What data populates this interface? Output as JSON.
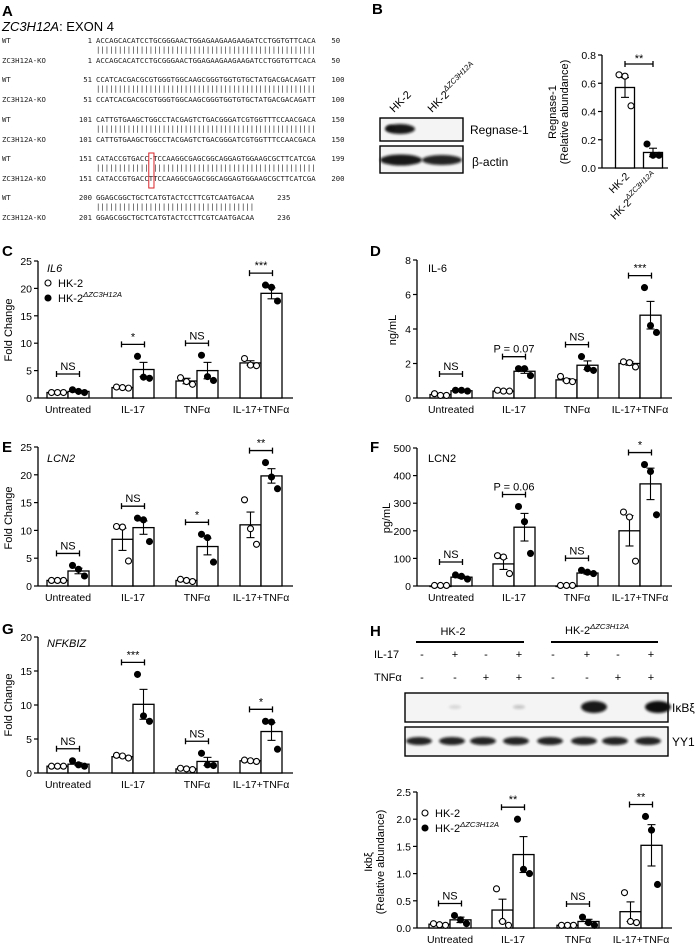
{
  "legend": {
    "hk2": "HK-2",
    "ko_main": "HK-2",
    "ko_sup": "ΔZC3H12A"
  },
  "panel_a": {
    "letter": "A",
    "title_gene": "ZC3H12A",
    "title_rest": ": EXON 4",
    "rows": [
      {
        "wt": {
          "label": "WT",
          "start": "1",
          "seq": "ACCAGCACATCCTGCGGGAACTGGAGAAGAAGAAGATCCTGGTGTTCACA",
          "end": "50"
        },
        "match": "||||||||||||||||||||||||||||||||||||||||||||||||||",
        "ko": {
          "label": "ZC3H12A-KO",
          "start": "1",
          "seq": "ACCAGCACATCCTGCGGGAACTGGAGAAGAAGAAGATCCTGGTGTTCACA",
          "end": "50"
        }
      },
      {
        "wt": {
          "label": "WT",
          "start": "51",
          "seq": "CCATCACGACGCGTGGGTGGCAAGCGGGTGGTGTGCTATGACGACAGATT",
          "end": "100"
        },
        "match": "||||||||||||||||||||||||||||||||||||||||||||||||||",
        "ko": {
          "label": "ZC3H12A-KO",
          "start": "51",
          "seq": "CCATCACGACGCGTGGGTGGCAAGCGGGTGGTGTGCTATGACGACAGATT",
          "end": "100"
        }
      },
      {
        "wt": {
          "label": "WT",
          "start": "101",
          "seq": "CATTGTGAAGCTGGCCTACGAGTCTGACGGGATCGTGGTTTCCAACGACA",
          "end": "150"
        },
        "match": "||||||||||||||||||||||||||||||||||||||||||||||||||",
        "ko": {
          "label": "ZC3H12A-KO",
          "start": "101",
          "seq": "CATTGTGAAGCTGGCCTACGAGTCTGACGGGATCGTGGTTTCCAACGACA",
          "end": "150"
        }
      },
      {
        "wt": {
          "label": "WT",
          "start": "151",
          "seq": "CATACCGTGACC-TCCAAGGCGAGCGGCAGGAGTGGAAGCGCTTCATCGA",
          "end": "199"
        },
        "match": "|||||||||||| |||||||||||||||||||||||||||||||||||||",
        "ko": {
          "label": "ZC3H12A-KO",
          "start": "151",
          "seq": "CATACCGTGACCTTCCAAGGCGAGCGGCAGGAGTGGAAGCGCTTCATCGA",
          "end": "200"
        }
      },
      {
        "wt": {
          "label": "WT",
          "start": "200",
          "seq": "GGAGCGGCTGCTCATGTACTCCTTCGTCAATGACAA",
          "end": "235"
        },
        "match": "||||||||||||||||||||||||||||||||||||",
        "ko": {
          "label": "ZC3H12A-KO",
          "start": "201",
          "seq": "GGAGCGGCTGCTCATGTACTCCTTCGTCAATGACAA",
          "end": "236"
        }
      }
    ],
    "highlight_color": "#d9262b"
  },
  "panel_b": {
    "letter": "B",
    "lane_labels": [
      "HK-2",
      "HK-2"
    ],
    "lane_sup": [
      "",
      "ΔZC3H12A"
    ],
    "bands": [
      "Regnase-1",
      "β-actin"
    ]
  },
  "panel_h_blot": {
    "letter": "H",
    "groups": [
      {
        "main": "HK-2",
        "sup": ""
      },
      {
        "main": "HK-2",
        "sup": "ΔZC3H12A"
      }
    ],
    "rows": [
      {
        "label": "IL-17",
        "signs": [
          "-",
          "+",
          "-",
          "+",
          "-",
          "+",
          "-",
          "+"
        ]
      },
      {
        "label": "TNFα",
        "signs": [
          "-",
          "-",
          "+",
          "+",
          "-",
          "-",
          "+",
          "+"
        ]
      }
    ],
    "bands": [
      "IκBξ",
      "YY1"
    ]
  },
  "chart_data": [
    {
      "id": "B",
      "letter": "",
      "type": "bar",
      "title": "",
      "title_italic": false,
      "ylabel": [
        "Regnase-1",
        "(Relative abundance)"
      ],
      "ylim": [
        0,
        0.8
      ],
      "yticks": [
        "0.0",
        "0.2",
        "0.4",
        "0.6",
        "0.8"
      ],
      "categories": [
        {
          "main": "HK-2",
          "sup": ""
        },
        {
          "main": "HK-2",
          "sup": "ΔZC3H12A"
        }
      ],
      "groups": [
        {
          "bars": [
            {
              "series": 0,
              "mean": 0.57,
              "sem": 0.07,
              "points": [
                0.66,
                0.65,
                0.44
              ]
            }
          ]
        },
        {
          "bars": [
            {
              "series": 1,
              "mean": 0.11,
              "sem": 0.03,
              "points": [
                0.17,
                0.09,
                0.09
              ]
            }
          ]
        }
      ],
      "comparisons": [
        {
          "label": "**",
          "between": [
            0,
            1
          ]
        }
      ],
      "legend": false
    },
    {
      "id": "C",
      "letter": "C",
      "type": "bar",
      "title": "IL6",
      "title_italic": true,
      "ylabel": [
        "Fold Change"
      ],
      "ylim": [
        0,
        25
      ],
      "yticks": [
        "0",
        "5",
        "10",
        "15",
        "20",
        "25"
      ],
      "categories": [
        "Untreated",
        "IL-17",
        "TNFα",
        "IL-17+TNFα"
      ],
      "series": [
        "HK-2",
        "HK-2ΔZC3H12A"
      ],
      "groups": [
        {
          "sig": "NS",
          "bars": [
            {
              "series": 0,
              "mean": 1.0,
              "sem": 0.05,
              "points": [
                1.0,
                1.0,
                1.0
              ]
            },
            {
              "series": 1,
              "mean": 1.2,
              "sem": 0.15,
              "points": [
                1.5,
                1.2,
                1.0
              ]
            }
          ]
        },
        {
          "sig": "*",
          "bars": [
            {
              "series": 0,
              "mean": 1.9,
              "sem": 0.1,
              "points": [
                2.0,
                1.9,
                1.8
              ]
            },
            {
              "series": 1,
              "mean": 5.2,
              "sem": 1.3,
              "points": [
                7.6,
                3.8,
                3.6
              ]
            }
          ]
        },
        {
          "sig": "NS",
          "bars": [
            {
              "series": 0,
              "mean": 3.1,
              "sem": 0.5,
              "points": [
                3.7,
                3.0,
                2.5
              ]
            },
            {
              "series": 1,
              "mean": 5.0,
              "sem": 1.5,
              "points": [
                7.8,
                3.9,
                3.2
              ]
            }
          ]
        },
        {
          "sig": "***",
          "bars": [
            {
              "series": 0,
              "mean": 6.4,
              "sem": 0.4,
              "points": [
                7.2,
                6.0,
                5.9
              ]
            },
            {
              "series": 1,
              "mean": 19.1,
              "sem": 1.0,
              "points": [
                20.6,
                20.2,
                17.7
              ]
            }
          ]
        }
      ],
      "legend": true
    },
    {
      "id": "D",
      "letter": "D",
      "type": "bar",
      "title": "IL-6",
      "title_italic": false,
      "ylabel": [
        "ng/mL"
      ],
      "ylim": [
        0,
        8
      ],
      "yticks": [
        "0",
        "2",
        "4",
        "6",
        "8"
      ],
      "categories": [
        "Untreated",
        "IL-17",
        "TNFα",
        "IL-17+TNFα"
      ],
      "groups": [
        {
          "sig": "NS",
          "bars": [
            {
              "series": 0,
              "mean": 0.2,
              "sem": 0.03,
              "points": [
                0.25,
                0.15,
                0.15
              ]
            },
            {
              "series": 1,
              "mean": 0.42,
              "sem": 0.02,
              "points": [
                0.45,
                0.45,
                0.4
              ]
            }
          ]
        },
        {
          "sig": "P = 0.07",
          "bars": [
            {
              "series": 0,
              "mean": 0.4,
              "sem": 0.02,
              "points": [
                0.45,
                0.4,
                0.4
              ]
            },
            {
              "series": 1,
              "mean": 1.55,
              "sem": 0.12,
              "points": [
                1.7,
                1.7,
                1.3
              ]
            }
          ]
        },
        {
          "sig": "NS",
          "bars": [
            {
              "series": 0,
              "mean": 1.05,
              "sem": 0.08,
              "points": [
                1.25,
                1.0,
                0.95
              ]
            },
            {
              "series": 1,
              "mean": 1.9,
              "sem": 0.25,
              "points": [
                2.4,
                1.7,
                1.6
              ]
            }
          ]
        },
        {
          "sig": "***",
          "bars": [
            {
              "series": 0,
              "mean": 2.0,
              "sem": 0.1,
              "points": [
                2.1,
                2.05,
                1.8
              ]
            },
            {
              "series": 1,
              "mean": 4.8,
              "sem": 0.8,
              "points": [
                6.4,
                4.2,
                3.8
              ]
            }
          ]
        }
      ],
      "legend": false
    },
    {
      "id": "E",
      "letter": "E",
      "type": "bar",
      "title": "LCN2",
      "title_italic": true,
      "ylabel": [
        "Fold Change"
      ],
      "ylim": [
        0,
        25
      ],
      "yticks": [
        "0",
        "5",
        "10",
        "15",
        "20",
        "25"
      ],
      "categories": [
        "Untreated",
        "IL-17",
        "TNFα",
        "IL-17+TNFα"
      ],
      "groups": [
        {
          "sig": "NS",
          "bars": [
            {
              "series": 0,
              "mean": 1.0,
              "sem": 0.05,
              "points": [
                1.0,
                1.0,
                1.0
              ]
            },
            {
              "series": 1,
              "mean": 2.7,
              "sem": 0.5,
              "points": [
                3.7,
                3.0,
                1.8
              ]
            }
          ]
        },
        {
          "sig": "NS",
          "bars": [
            {
              "series": 0,
              "mean": 8.4,
              "sem": 2.0,
              "points": [
                10.7,
                10.6,
                4.5
              ]
            },
            {
              "series": 1,
              "mean": 10.5,
              "sem": 1.2,
              "points": [
                12.2,
                11.9,
                8.0
              ]
            }
          ]
        },
        {
          "sig": "*",
          "bars": [
            {
              "series": 0,
              "mean": 1.0,
              "sem": 0.1,
              "points": [
                1.2,
                1.0,
                0.8
              ]
            },
            {
              "series": 1,
              "mean": 7.1,
              "sem": 1.5,
              "points": [
                9.3,
                8.7,
                4.3
              ]
            }
          ]
        },
        {
          "sig": "**",
          "bars": [
            {
              "series": 0,
              "mean": 11.0,
              "sem": 2.3,
              "points": [
                15.5,
                10.3,
                7.5
              ]
            },
            {
              "series": 1,
              "mean": 19.8,
              "sem": 1.3,
              "points": [
                22.2,
                19.6,
                17.5
              ]
            }
          ]
        }
      ],
      "legend": false
    },
    {
      "id": "F",
      "letter": "F",
      "type": "bar",
      "title": "LCN2",
      "title_italic": false,
      "ylabel": [
        "pg/mL"
      ],
      "ylim": [
        0,
        500
      ],
      "yticks": [
        "0",
        "100",
        "200",
        "300",
        "400",
        "500"
      ],
      "categories": [
        "Untreated",
        "IL-17",
        "TNFα",
        "IL-17+TNFα"
      ],
      "groups": [
        {
          "sig": "NS",
          "bars": [
            {
              "series": 0,
              "mean": 0,
              "sem": 0,
              "points": [
                2,
                2,
                2
              ]
            },
            {
              "series": 1,
              "mean": 32,
              "sem": 4,
              "points": [
                40,
                35,
                25
              ]
            }
          ]
        },
        {
          "sig": "P = 0.06",
          "bars": [
            {
              "series": 0,
              "mean": 80,
              "sem": 20,
              "points": [
                110,
                105,
                45
              ]
            },
            {
              "series": 1,
              "mean": 213,
              "sem": 50,
              "points": [
                288,
                233,
                118
              ]
            }
          ]
        },
        {
          "sig": "NS",
          "bars": [
            {
              "series": 0,
              "mean": 0,
              "sem": 0,
              "points": [
                2,
                2,
                2
              ]
            },
            {
              "series": 1,
              "mean": 47,
              "sem": 4,
              "points": [
                57,
                50,
                45
              ]
            }
          ]
        },
        {
          "sig": "*",
          "bars": [
            {
              "series": 0,
              "mean": 200,
              "sem": 55,
              "points": [
                268,
                250,
                90
              ]
            },
            {
              "series": 1,
              "mean": 370,
              "sem": 57,
              "points": [
                440,
                415,
                258
              ]
            }
          ]
        }
      ],
      "legend": false
    },
    {
      "id": "G",
      "letter": "G",
      "type": "bar",
      "title": "NFKBIZ",
      "title_italic": true,
      "ylabel": [
        "Fold Change"
      ],
      "ylim": [
        0,
        20
      ],
      "yticks": [
        "0",
        "5",
        "10",
        "15",
        "20"
      ],
      "categories": [
        "Untreated",
        "IL-17",
        "TNFα",
        "IL-17+TNFα"
      ],
      "groups": [
        {
          "sig": "NS",
          "bars": [
            {
              "series": 0,
              "mean": 1.0,
              "sem": 0.05,
              "points": [
                1.0,
                1.0,
                1.0
              ]
            },
            {
              "series": 1,
              "mean": 1.3,
              "sem": 0.2,
              "points": [
                1.8,
                1.2,
                1.0
              ]
            }
          ]
        },
        {
          "sig": "***",
          "bars": [
            {
              "series": 0,
              "mean": 2.4,
              "sem": 0.1,
              "points": [
                2.6,
                2.5,
                2.2
              ]
            },
            {
              "series": 1,
              "mean": 10.1,
              "sem": 2.2,
              "points": [
                14.5,
                8.4,
                7.6
              ]
            }
          ]
        },
        {
          "sig": "NS",
          "bars": [
            {
              "series": 0,
              "mean": 0.6,
              "sem": 0.05,
              "points": [
                0.7,
                0.6,
                0.5
              ]
            },
            {
              "series": 1,
              "mean": 1.7,
              "sem": 0.6,
              "points": [
                2.9,
                1.2,
                1.1
              ]
            }
          ]
        },
        {
          "sig": "*",
          "bars": [
            {
              "series": 0,
              "mean": 1.8,
              "sem": 0.05,
              "points": [
                1.9,
                1.8,
                1.7
              ]
            },
            {
              "series": 1,
              "mean": 6.1,
              "sem": 1.3,
              "points": [
                7.6,
                7.5,
                3.5
              ]
            }
          ]
        }
      ],
      "legend": false
    },
    {
      "id": "H",
      "letter": "",
      "type": "bar",
      "title": "",
      "title_italic": false,
      "ylabel": [
        "Iκbξ",
        "(Relative abundance)"
      ],
      "ylim": [
        0,
        2.5
      ],
      "yticks": [
        "0.0",
        "0.5",
        "1.0",
        "1.5",
        "2.0",
        "2.5"
      ],
      "categories": [
        "Untreated",
        "IL-17",
        "TNFα",
        "IL-17+TNFα"
      ],
      "series": [
        "HK-2",
        "HK-2ΔZC3H12A"
      ],
      "groups": [
        {
          "sig": "NS",
          "bars": [
            {
              "series": 0,
              "mean": 0.07,
              "sem": 0.01,
              "points": [
                0.08,
                0.06,
                0.05
              ]
            },
            {
              "series": 1,
              "mean": 0.15,
              "sem": 0.05,
              "points": [
                0.23,
                0.15,
                0.08
              ]
            }
          ]
        },
        {
          "sig": "**",
          "bars": [
            {
              "series": 0,
              "mean": 0.33,
              "sem": 0.2,
              "points": [
                0.72,
                0.12,
                0.05
              ]
            },
            {
              "series": 1,
              "mean": 1.35,
              "sem": 0.33,
              "points": [
                2.0,
                1.08,
                1.0
              ]
            }
          ]
        },
        {
          "sig": "NS",
          "bars": [
            {
              "series": 0,
              "mean": 0.05,
              "sem": 0.01,
              "points": [
                0.05,
                0.05,
                0.05
              ]
            },
            {
              "series": 1,
              "mean": 0.12,
              "sem": 0.04,
              "points": [
                0.2,
                0.1,
                0.05
              ]
            }
          ]
        },
        {
          "sig": "**",
          "bars": [
            {
              "series": 0,
              "mean": 0.3,
              "sem": 0.18,
              "points": [
                0.65,
                0.12,
                0.1
              ]
            },
            {
              "series": 1,
              "mean": 1.52,
              "sem": 0.38,
              "points": [
                2.05,
                1.8,
                0.8
              ]
            }
          ]
        }
      ],
      "legend": true
    }
  ]
}
